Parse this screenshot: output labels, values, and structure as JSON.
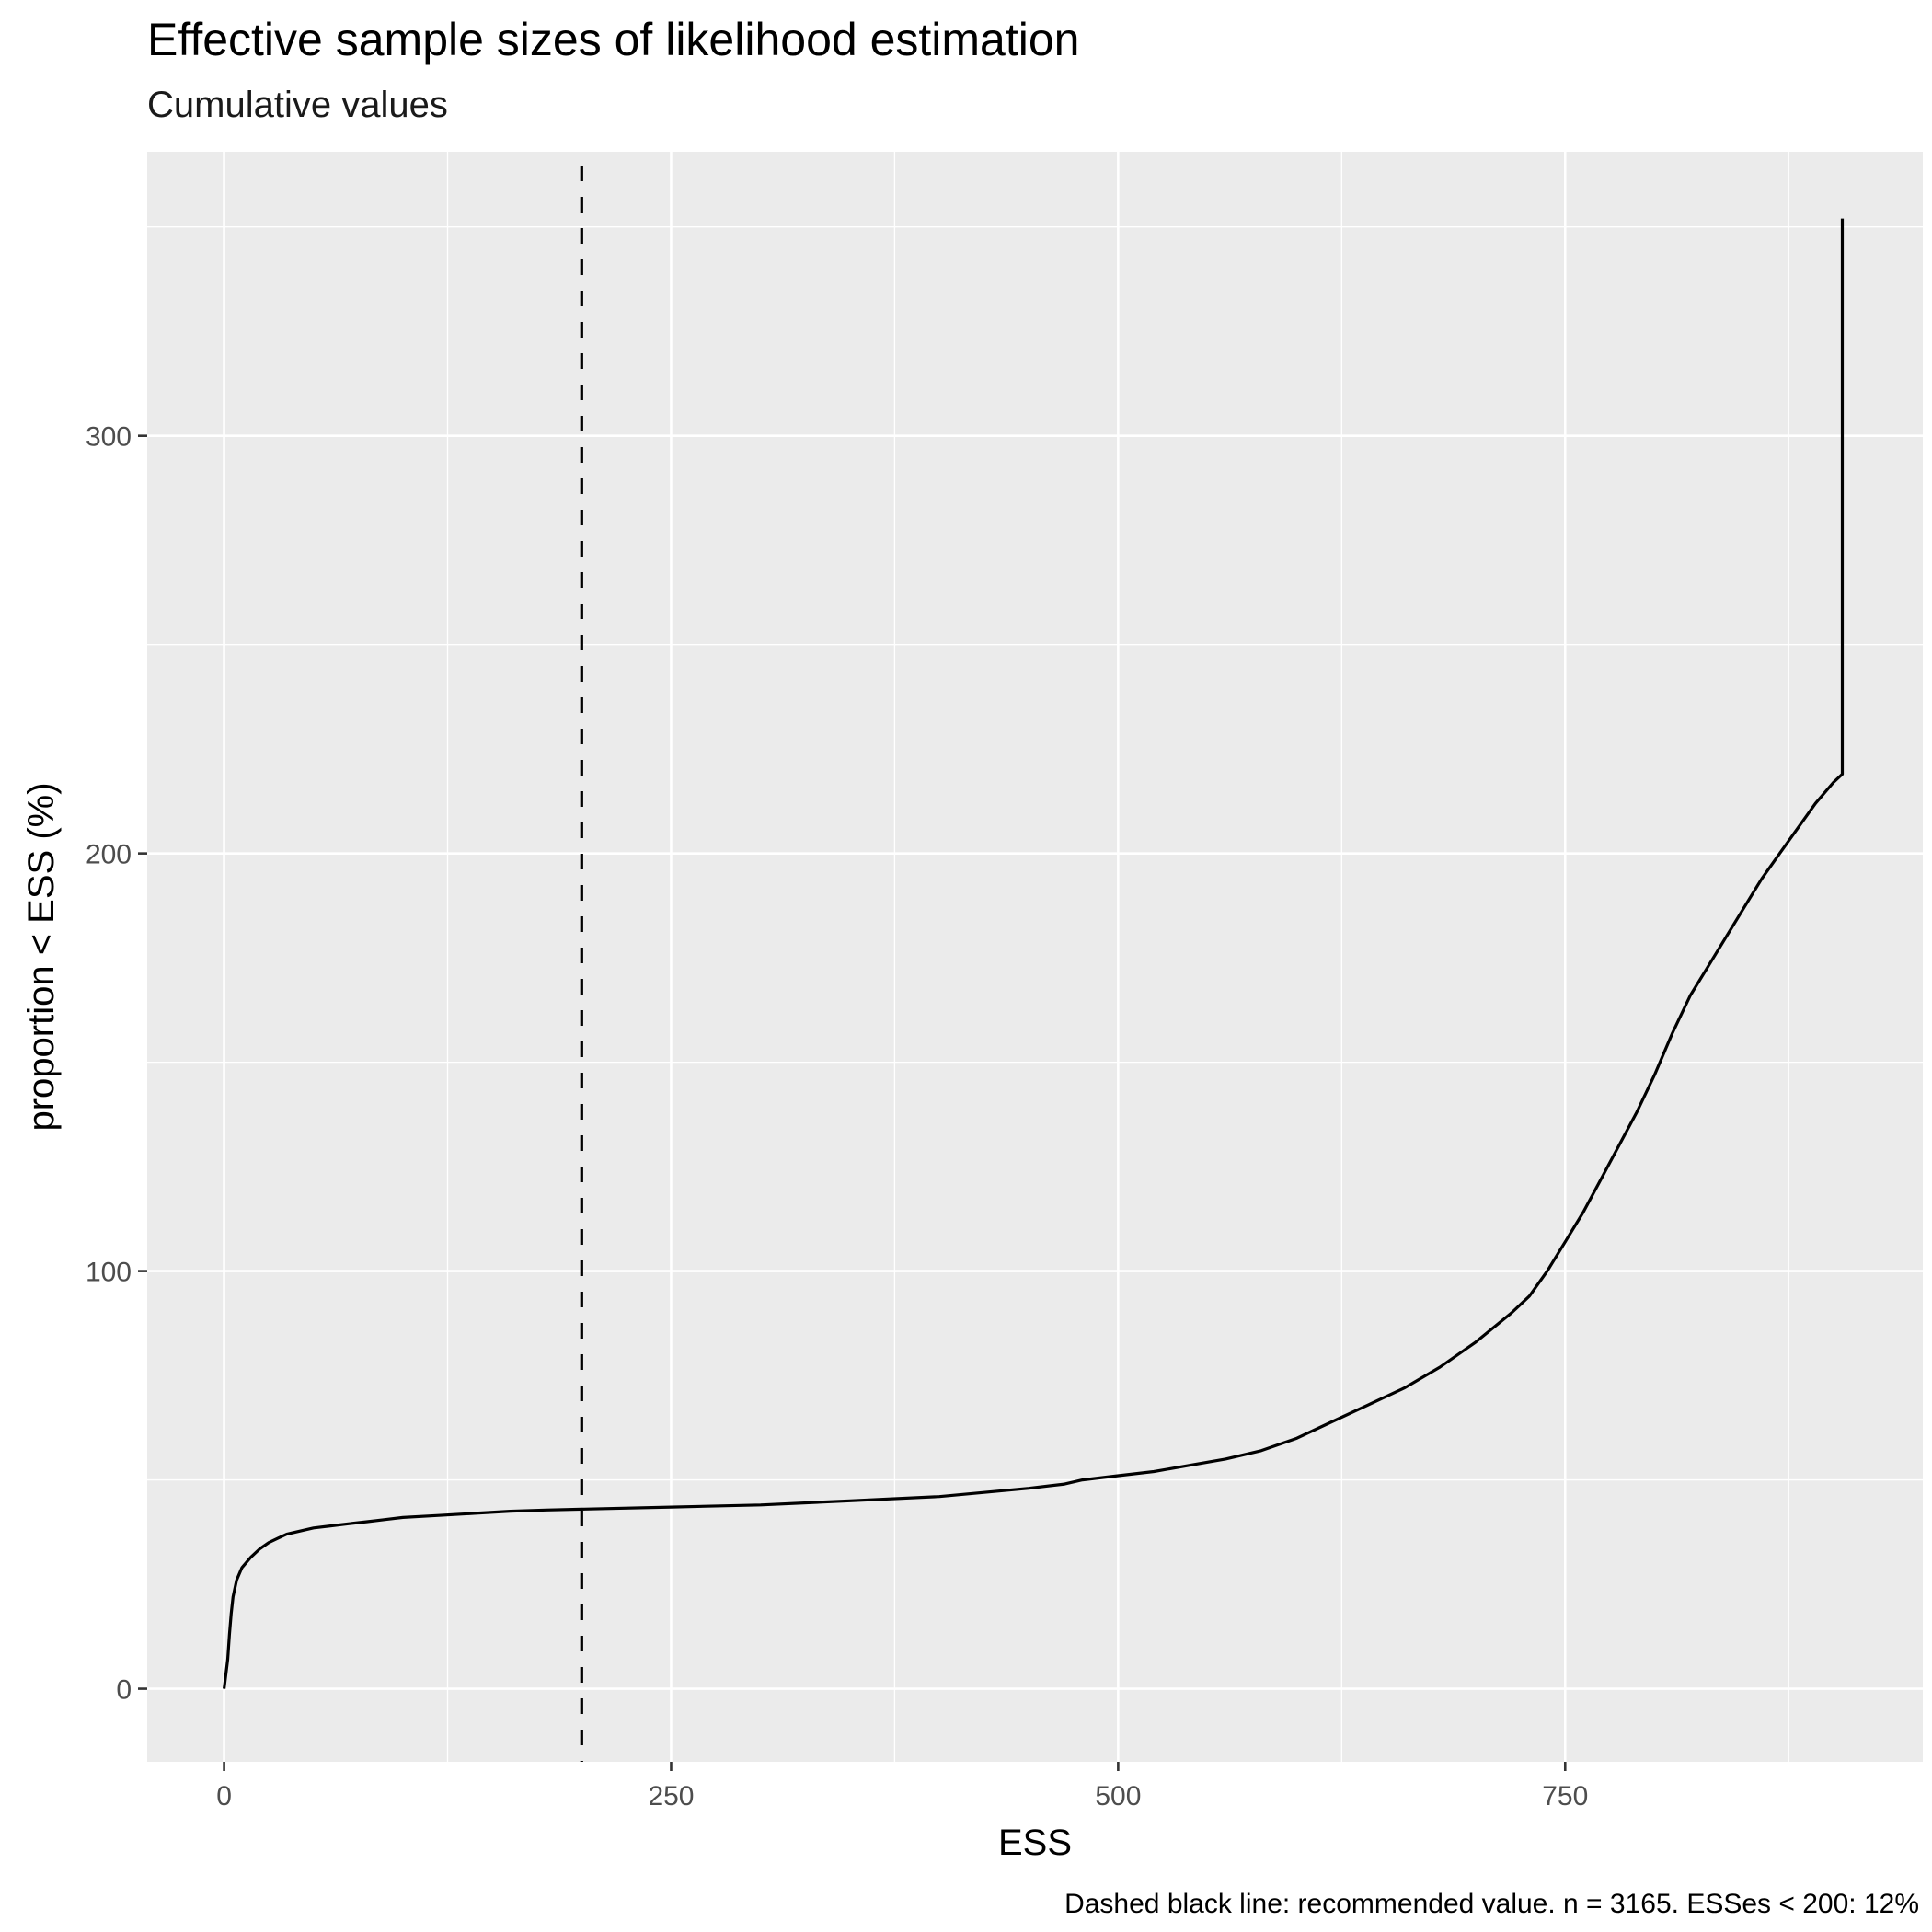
{
  "chart_data": {
    "type": "line",
    "title": "Effective sample sizes of likelihood estimation",
    "subtitle": "Cumulative values",
    "xlabel": "ESS",
    "ylabel": "proportion < ESS (%)",
    "caption": "Dashed black line: recommended value. n =  3165. ESSes < 200: 12%",
    "xlim": [
      -43,
      950
    ],
    "ylim": [
      -17.5,
      368
    ],
    "x_ticks": [
      0,
      250,
      500,
      750
    ],
    "x_tick_labels": [
      "0",
      "250",
      "500",
      "750"
    ],
    "y_ticks": [
      0,
      100,
      200,
      300
    ],
    "y_tick_labels": [
      "0",
      "100",
      "200",
      "300"
    ],
    "grid": true,
    "legend": "none",
    "reference_line": {
      "x": 200,
      "style": "dashed",
      "color": "#000000"
    },
    "series": [
      {
        "color": "#000000",
        "x": [
          0,
          2,
          3,
          4,
          5,
          7,
          10,
          15,
          20,
          25,
          30,
          35,
          40,
          45,
          50,
          60,
          70,
          80,
          90,
          100,
          120,
          140,
          160,
          180,
          200,
          250,
          300,
          350,
          400,
          450,
          470,
          480,
          500,
          520,
          540,
          560,
          580,
          600,
          620,
          640,
          660,
          680,
          700,
          720,
          730,
          740,
          750,
          760,
          770,
          780,
          790,
          800,
          810,
          820,
          830,
          840,
          850,
          860,
          870,
          880,
          890,
          900,
          905,
          905
        ],
        "y": [
          0,
          7,
          13,
          18,
          22,
          26,
          29,
          31.5,
          33.5,
          35,
          36,
          37,
          37.5,
          38,
          38.5,
          39,
          39.5,
          40,
          40.5,
          41,
          41.5,
          42,
          42.5,
          42.8,
          43,
          43.5,
          44,
          45,
          46,
          48,
          49,
          50,
          51,
          52,
          53.5,
          55,
          57,
          60,
          64,
          68,
          72,
          77,
          83,
          90,
          94,
          100,
          107,
          114,
          122,
          130,
          138,
          147,
          157,
          166,
          173,
          180,
          187,
          194,
          200,
          206,
          212,
          217,
          219,
          352
        ]
      }
    ]
  },
  "colors": {
    "panel_background": "#ebebeb",
    "grid": "#ffffff",
    "axis_text": "#4d4d4d",
    "line": "#000000"
  }
}
